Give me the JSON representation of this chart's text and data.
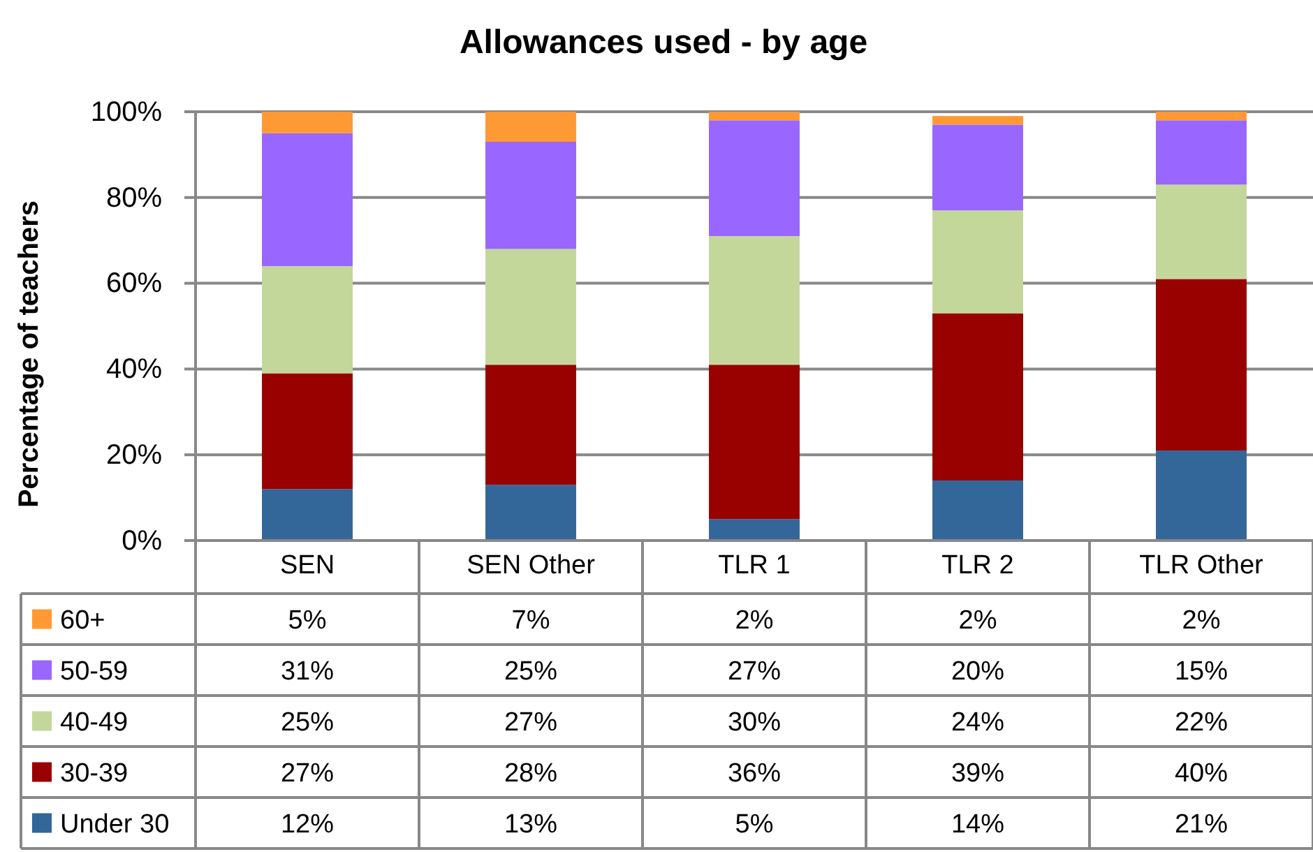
{
  "chart_data": {
    "type": "bar",
    "title": "Allowances used - by age",
    "ylabel": "Percentage of teachers",
    "categories": [
      "SEN",
      "SEN Other",
      "TLR 1",
      "TLR 2",
      "TLR Other"
    ],
    "stacked": true,
    "ylim": [
      0,
      100
    ],
    "yticks": [
      {
        "value": 0,
        "label": "0%"
      },
      {
        "value": 20,
        "label": "20%"
      },
      {
        "value": 40,
        "label": "40%"
      },
      {
        "value": 60,
        "label": "60%"
      },
      {
        "value": 80,
        "label": "80%"
      },
      {
        "value": 100,
        "label": "100%"
      }
    ],
    "grid": "y",
    "legend": "bottom",
    "series": [
      {
        "name": "Under 30",
        "color": "#336699",
        "values": [
          12,
          13,
          5,
          14,
          21
        ],
        "value_labels": [
          "12%",
          "13%",
          "5%",
          "14%",
          "21%"
        ]
      },
      {
        "name": "30-39",
        "color": "#990000",
        "values": [
          27,
          28,
          36,
          39,
          40
        ],
        "value_labels": [
          "27%",
          "28%",
          "36%",
          "39%",
          "40%"
        ]
      },
      {
        "name": "40-49",
        "color": "#c4d79b",
        "values": [
          25,
          27,
          30,
          24,
          22
        ],
        "value_labels": [
          "25%",
          "27%",
          "30%",
          "24%",
          "22%"
        ]
      },
      {
        "name": "50-59",
        "color": "#9966ff",
        "values": [
          31,
          25,
          27,
          20,
          15
        ],
        "value_labels": [
          "31%",
          "25%",
          "27%",
          "20%",
          "15%"
        ]
      },
      {
        "name": "60+",
        "color": "#ff9933",
        "values": [
          5,
          7,
          2,
          2,
          2
        ],
        "value_labels": [
          "5%",
          "7%",
          "2%",
          "2%",
          "2%"
        ]
      }
    ]
  }
}
